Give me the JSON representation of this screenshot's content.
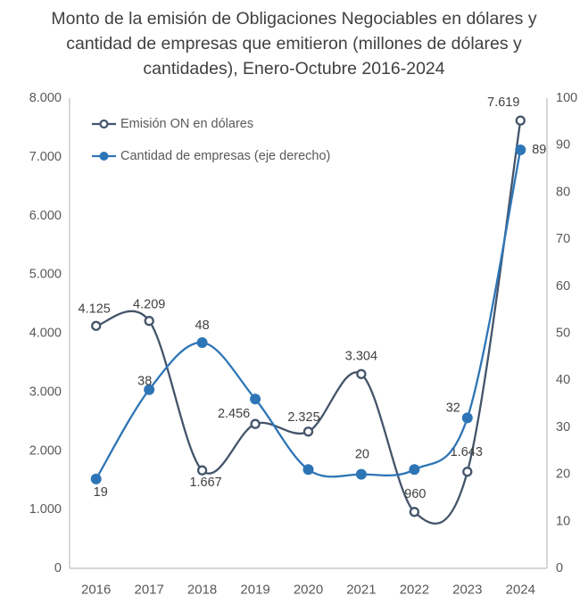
{
  "title": "Monto de la emisión de Obligaciones Negociables en dólares y\ncantidad de empresas que emitieron (millones de dólares y\ncantidades), Enero-Octubre 2016-2024",
  "chart_data": {
    "type": "line",
    "smoothed": true,
    "grid": false,
    "legend_position": "top-left-inside",
    "categories": [
      "2016",
      "2017",
      "2018",
      "2019",
      "2020",
      "2021",
      "2022",
      "2023",
      "2024"
    ],
    "series": [
      {
        "name": "Emisión ON en dólares",
        "axis": "left",
        "marker": "open-circle",
        "color": "#44546A",
        "values": [
          4125,
          4209,
          1667,
          2456,
          2325,
          3304,
          960,
          1643,
          7619
        ],
        "point_labels": [
          "4.125",
          "4.209",
          "1.667",
          "2.456",
          "2.325",
          "3.304",
          "960",
          "1.643",
          "7.619"
        ]
      },
      {
        "name": "Cantidad de empresas (eje derecho)",
        "axis": "right",
        "marker": "filled-circle",
        "color": "#2E75B6",
        "values": [
          19,
          38,
          48,
          36,
          21,
          20,
          21,
          32,
          89
        ],
        "point_labels": [
          "19",
          "38",
          "48",
          "",
          "",
          "20",
          "",
          "32",
          "89"
        ]
      }
    ],
    "left_axis": {
      "min": 0,
      "max": 8000,
      "step": 1000,
      "tick_labels": [
        "0",
        "1.000",
        "2.000",
        "3.000",
        "4.000",
        "5.000",
        "6.000",
        "7.000",
        "8.000"
      ]
    },
    "right_axis": {
      "min": 0,
      "max": 100,
      "step": 10,
      "tick_labels": [
        "0",
        "10",
        "20",
        "30",
        "40",
        "50",
        "60",
        "70",
        "80",
        "90",
        "100"
      ]
    },
    "colors": {
      "series_emision": "#44546A",
      "series_empresas": "#2E75B6",
      "axis_line": "#BFBFBF",
      "tick_text": "#595959",
      "title_text": "#404040",
      "data_label_text": "#404040",
      "legend_text": "#595959"
    }
  }
}
